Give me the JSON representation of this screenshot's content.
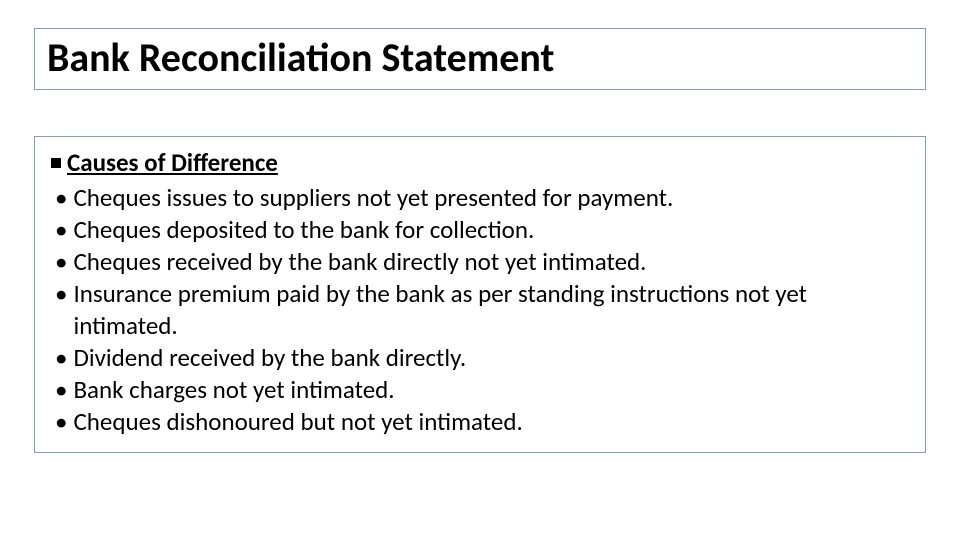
{
  "title": "Bank Reconciliation Statement",
  "section_heading": "Causes of Difference",
  "bullets": {
    "b0": "Cheques issues to suppliers not yet presented for payment.",
    "b1": "Cheques deposited to the bank for collection.",
    "b2": "Cheques received by the bank directly not yet intimated.",
    "b3": "Insurance premium paid by the bank as per standing instructions not yet intimated.",
    "b4": "Dividend received by the bank directly.",
    "b5": "Bank charges not yet intimated.",
    "b6": "Cheques dishonoured but not yet intimated."
  },
  "colors": {
    "border": "#7f9eb9",
    "text": "#000000",
    "background": "#ffffff"
  },
  "typography": {
    "title_fontsize": 40,
    "body_fontsize": 25,
    "title_weight": 700
  }
}
